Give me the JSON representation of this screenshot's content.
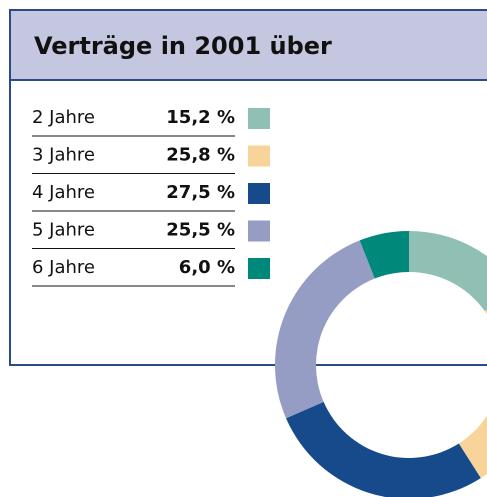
{
  "chart_data": {
    "type": "donut",
    "title": "Verträge in 2001 über",
    "categories": [
      "2 Jahre",
      "3 Jahre",
      "4 Jahre",
      "5 Jahre",
      "6 Jahre"
    ],
    "values": [
      15.2,
      25.8,
      27.5,
      25.5,
      6.0
    ],
    "value_labels": [
      "15,2 %",
      "25,8 %",
      "27,5 %",
      "25,5 %",
      "6,0 %"
    ],
    "colors": [
      "#8fc0b3",
      "#f9d49a",
      "#164a8a",
      "#959dc4",
      "#00887a"
    ]
  }
}
